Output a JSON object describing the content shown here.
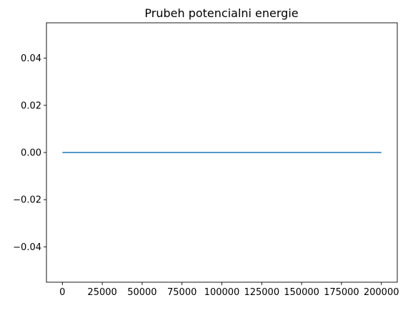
{
  "chart_data": {
    "type": "line",
    "title": "Prubeh potencialni energie",
    "xlabel": "",
    "ylabel": "",
    "xlim": [
      -10000,
      210000
    ],
    "ylim": [
      -0.055,
      0.055
    ],
    "x_ticks": [
      0,
      25000,
      50000,
      75000,
      100000,
      125000,
      150000,
      175000,
      200000
    ],
    "x_tick_labels": [
      "0",
      "25000",
      "50000",
      "75000",
      "100000",
      "125000",
      "150000",
      "175000",
      "200000"
    ],
    "y_ticks": [
      -0.04,
      -0.02,
      0.0,
      0.02,
      0.04
    ],
    "y_tick_labels": [
      "−0.04",
      "−0.02",
      "0.00",
      "0.02",
      "0.04"
    ],
    "grid": false,
    "series": [
      {
        "color": "#1f77b4",
        "x": [
          0,
          200000
        ],
        "y": [
          0,
          0
        ]
      }
    ]
  }
}
